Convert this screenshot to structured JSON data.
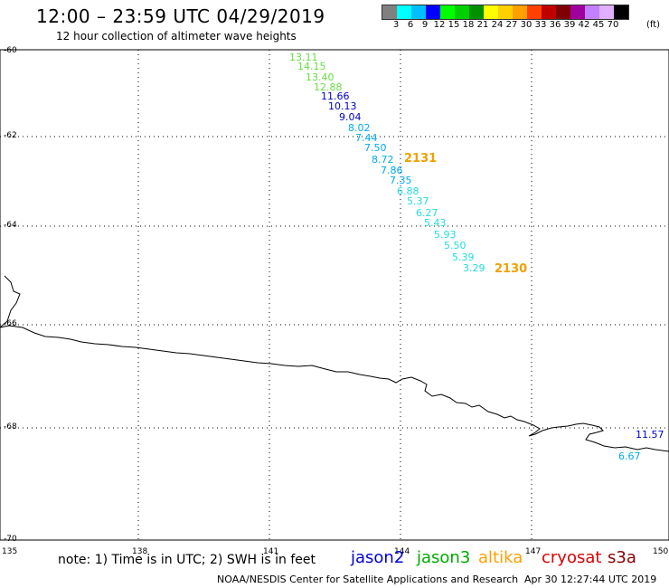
{
  "header": {
    "title": "12:00 – 23:59 UTC 04/29/2019",
    "subtitle": "12 hour collection of altimeter wave heights"
  },
  "color_scale": {
    "swatches": [
      "#808080",
      "#00ffff",
      "#00bfff",
      "#0000ff",
      "#00ff00",
      "#00d000",
      "#009000",
      "#ffff00",
      "#ffd000",
      "#ffa000",
      "#ff4000",
      "#c00000",
      "#800000",
      "#a000a0",
      "#c080ff",
      "#e0b0ff",
      "#000000"
    ],
    "labels": [
      "3",
      "6",
      "9",
      "12",
      "15",
      "18",
      "21",
      "24",
      "27",
      "30",
      "33",
      "36",
      "39",
      "42",
      "45",
      "70"
    ],
    "units": "(ft)"
  },
  "axes": {
    "lat_labels": [
      "-60",
      "-62",
      "-64",
      "-66",
      "-68",
      "-70"
    ],
    "lon_labels": [
      "135",
      "138",
      "141",
      "144",
      "147",
      "150"
    ]
  },
  "observations": [
    {
      "v": "13.11",
      "c": "#66dd44"
    },
    {
      "v": "14.15",
      "c": "#66dd44"
    },
    {
      "v": "13.40",
      "c": "#66dd44"
    },
    {
      "v": "12.88",
      "c": "#66dd44"
    },
    {
      "v": "11.66",
      "c": "#0000cc"
    },
    {
      "v": "10.13",
      "c": "#0000cc"
    },
    {
      "v": "9.04",
      "c": "#0000cc"
    },
    {
      "v": "8.02",
      "c": "#00aaee"
    },
    {
      "v": "7.44",
      "c": "#00aaee"
    },
    {
      "v": "7.50",
      "c": "#00aaee"
    },
    {
      "v": "8.72",
      "c": "#00aaee"
    },
    {
      "v": "7.86",
      "c": "#00aaee"
    },
    {
      "v": "7.35",
      "c": "#00aaee"
    },
    {
      "v": "6.88",
      "c": "#22dddd"
    },
    {
      "v": "5.37",
      "c": "#22dddd"
    },
    {
      "v": "6.27",
      "c": "#22dddd"
    },
    {
      "v": "5.43",
      "c": "#22dddd"
    },
    {
      "v": "5.93",
      "c": "#22dddd"
    },
    {
      "v": "5.50",
      "c": "#22dddd"
    },
    {
      "v": "5.39",
      "c": "#22dddd"
    },
    {
      "v": "3.29",
      "c": "#22dddd"
    },
    {
      "v": "11.57",
      "c": "#0000cc"
    },
    {
      "v": "6.67",
      "c": "#00aaee"
    }
  ],
  "passes": [
    "2131",
    "2130"
  ],
  "footer": {
    "note": "note: 1) Time is in UTC; 2) SWH is in feet",
    "satellites": [
      {
        "name": "jason2",
        "color": "#0000dd"
      },
      {
        "name": "jason3",
        "color": "#00aa00"
      },
      {
        "name": "altika",
        "color": "#ffa000"
      },
      {
        "name": "cryosat",
        "color": "#dd0000"
      },
      {
        "name": "s3a",
        "color": "#880000"
      }
    ],
    "credit": "NOAA/NESDIS Center for Satellite Applications and Research",
    "timestamp": "Apr 30 12:27:44 UTC 2019"
  }
}
